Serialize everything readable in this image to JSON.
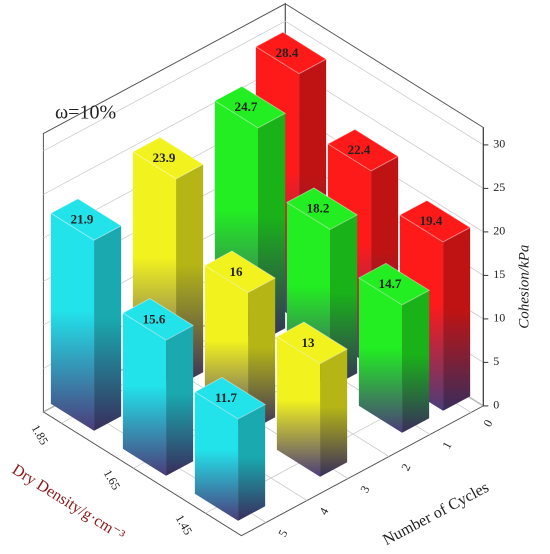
{
  "chart_data": {
    "type": "bar3d",
    "annotation": "ω=10%",
    "x_label": "Dry Density/g·cm⁻³",
    "y_label": "Number of Cycles",
    "z_label": "Cohesion/kPa",
    "x": [
      1.85,
      1.65,
      1.45
    ],
    "xlim": [
      1.9,
      1.35
    ],
    "xticks": [
      1.85,
      1.65,
      1.45
    ],
    "ylim": [
      -0.3,
      5.6
    ],
    "yticks": [
      0,
      1,
      2,
      3,
      4,
      5
    ],
    "zlim": [
      0,
      32
    ],
    "zticks": [
      0,
      5,
      10,
      15,
      20,
      25,
      30
    ],
    "grid": true,
    "series": [
      {
        "y": 0,
        "color": "#ff1a1a",
        "values": [
          28.4,
          22.4,
          19.4
        ]
      },
      {
        "y": 1,
        "color": "#22ee22",
        "values": [
          24.7,
          18.2,
          14.7
        ]
      },
      {
        "y": 3,
        "color": "#f2f21e",
        "values": [
          23.9,
          16,
          13
        ]
      },
      {
        "y": 5,
        "color": "#22e2ea",
        "values": [
          21.9,
          15.6,
          11.7
        ]
      }
    ]
  }
}
